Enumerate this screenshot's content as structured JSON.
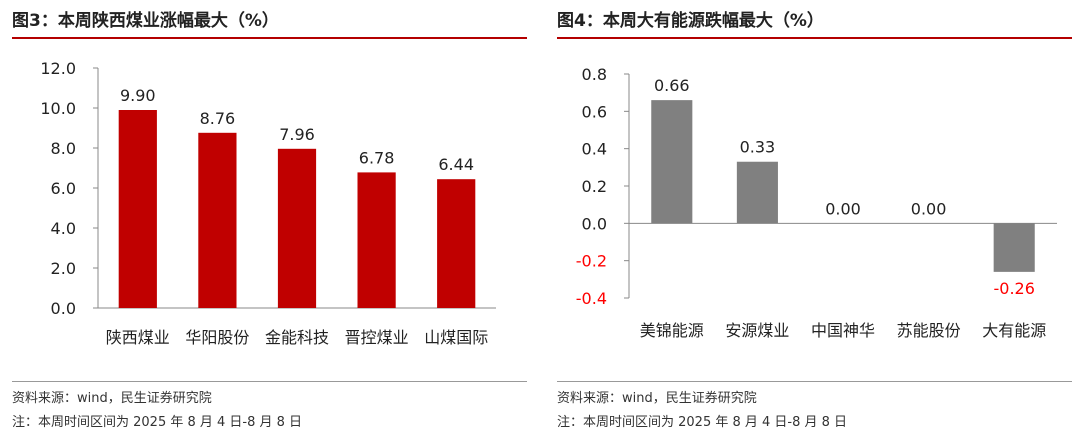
{
  "panels": [
    {
      "title": "图3：本周陕西煤业涨幅最大（%）",
      "source": "资料来源：wind，民生证券研究院",
      "note": "注：本周时间区间为 2025 年 8 月 4 日-8 月 8 日"
    },
    {
      "title": "图4：本周大有能源跌幅最大（%）",
      "source": "资料来源：wind，民生证券研究院",
      "note": "注：本周时间区间为 2025 年 8 月 4 日-8 月 8 日"
    }
  ],
  "chart_data": [
    {
      "type": "bar",
      "categories": [
        "陕西煤业",
        "华阳股份",
        "金能科技",
        "晋控煤业",
        "山煤国际"
      ],
      "values": [
        9.9,
        8.76,
        7.96,
        6.78,
        6.44
      ],
      "value_labels": [
        "9.90",
        "8.76",
        "7.96",
        "6.78",
        "6.44"
      ],
      "yticks": [
        "0.0",
        "2.0",
        "4.0",
        "6.0",
        "8.0",
        "10.0",
        "12.0"
      ],
      "ylim": [
        0,
        12
      ],
      "bar_color": "#c00000",
      "grid": false,
      "legend": "none"
    },
    {
      "type": "bar",
      "categories": [
        "美锦能源",
        "安源煤业",
        "中国神华",
        "苏能股份",
        "大有能源"
      ],
      "values": [
        0.66,
        0.33,
        0.0,
        0.0,
        -0.26
      ],
      "value_labels": [
        "0.66",
        "0.33",
        "0.00",
        "0.00",
        "-0.26"
      ],
      "yticks": [
        "-0.4",
        "-0.2",
        "0.0",
        "0.2",
        "0.4",
        "0.6",
        "0.8"
      ],
      "ylim": [
        -0.4,
        0.8
      ],
      "bar_color": "#808080",
      "negative_tick_color": "#ff0000",
      "negative_label_color": "#ff0000",
      "grid": false,
      "legend": "none"
    }
  ]
}
